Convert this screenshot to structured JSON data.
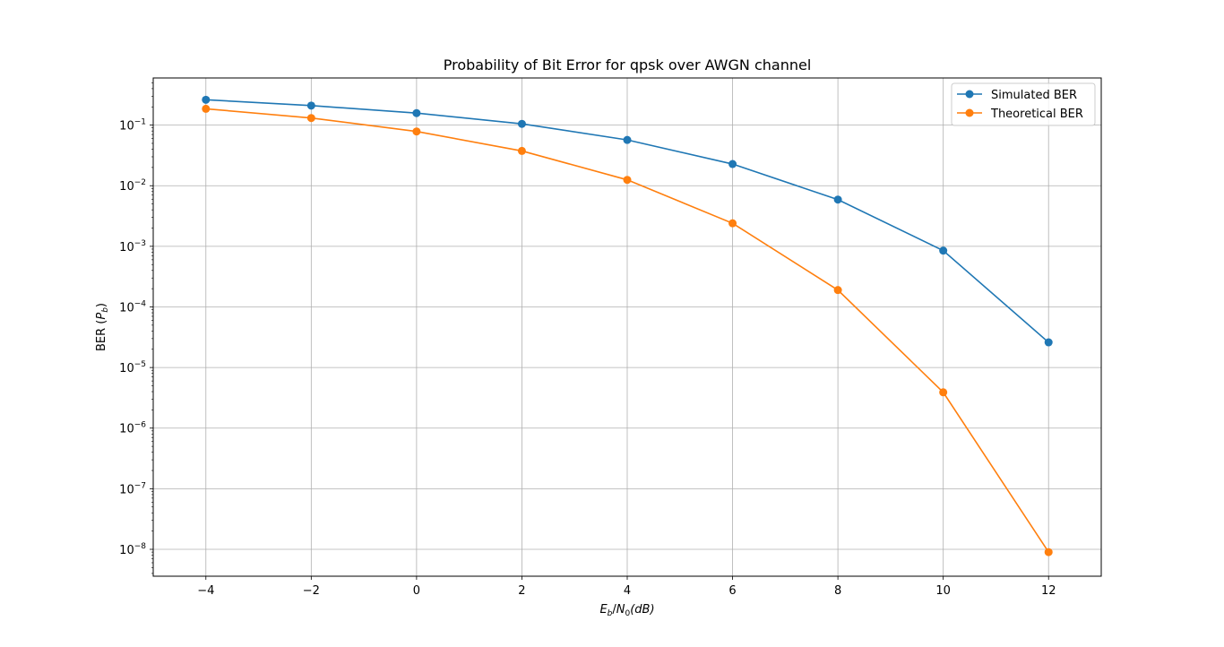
{
  "chart_data": {
    "type": "line",
    "title": "Probability of Bit Error for qpsk over AWGN channel",
    "xlabel": {
      "E": "E",
      "E_sub": "b",
      "slash": "/",
      "N": "N",
      "N_sub": "0",
      "rest": "(dB)"
    },
    "ylabel": {
      "prefix": "BER (",
      "P": "P",
      "P_sub": "b",
      "suffix": ")"
    },
    "yscale": "log",
    "xlim": [
      -5,
      13
    ],
    "ylim": [
      3.6e-09,
      0.6
    ],
    "grid": true,
    "legend_position": "top-right",
    "x": [
      -4,
      -2,
      0,
      2,
      4,
      6,
      8,
      10,
      12
    ],
    "x_ticks": [
      -4,
      -2,
      0,
      2,
      4,
      6,
      8,
      10,
      12
    ],
    "x_tick_labels": [
      "−4",
      "−2",
      "0",
      "2",
      "4",
      "6",
      "8",
      "10",
      "12"
    ],
    "y_ticks": [
      {
        "value": 0.1,
        "base": "10",
        "exp": "−1"
      },
      {
        "value": 0.01,
        "base": "10",
        "exp": "−2"
      },
      {
        "value": 0.001,
        "base": "10",
        "exp": "−3"
      },
      {
        "value": 0.0001,
        "base": "10",
        "exp": "−4"
      },
      {
        "value": 1e-05,
        "base": "10",
        "exp": "−5"
      },
      {
        "value": 1e-06,
        "base": "10",
        "exp": "−6"
      },
      {
        "value": 1e-07,
        "base": "10",
        "exp": "−7"
      },
      {
        "value": 1e-08,
        "base": "10",
        "exp": "−8"
      }
    ],
    "series": [
      {
        "name": "Simulated BER",
        "color": "#1f77b4",
        "values": [
          0.262,
          0.21,
          0.158,
          0.105,
          0.057,
          0.0228,
          0.0059,
          0.00085,
          2.6e-05
        ]
      },
      {
        "name": "Theoretical BER",
        "color": "#ff7f0e",
        "values": [
          0.186,
          0.131,
          0.0786,
          0.0375,
          0.0125,
          0.0024,
          0.00019,
          3.9e-06,
          9e-09
        ]
      }
    ]
  }
}
